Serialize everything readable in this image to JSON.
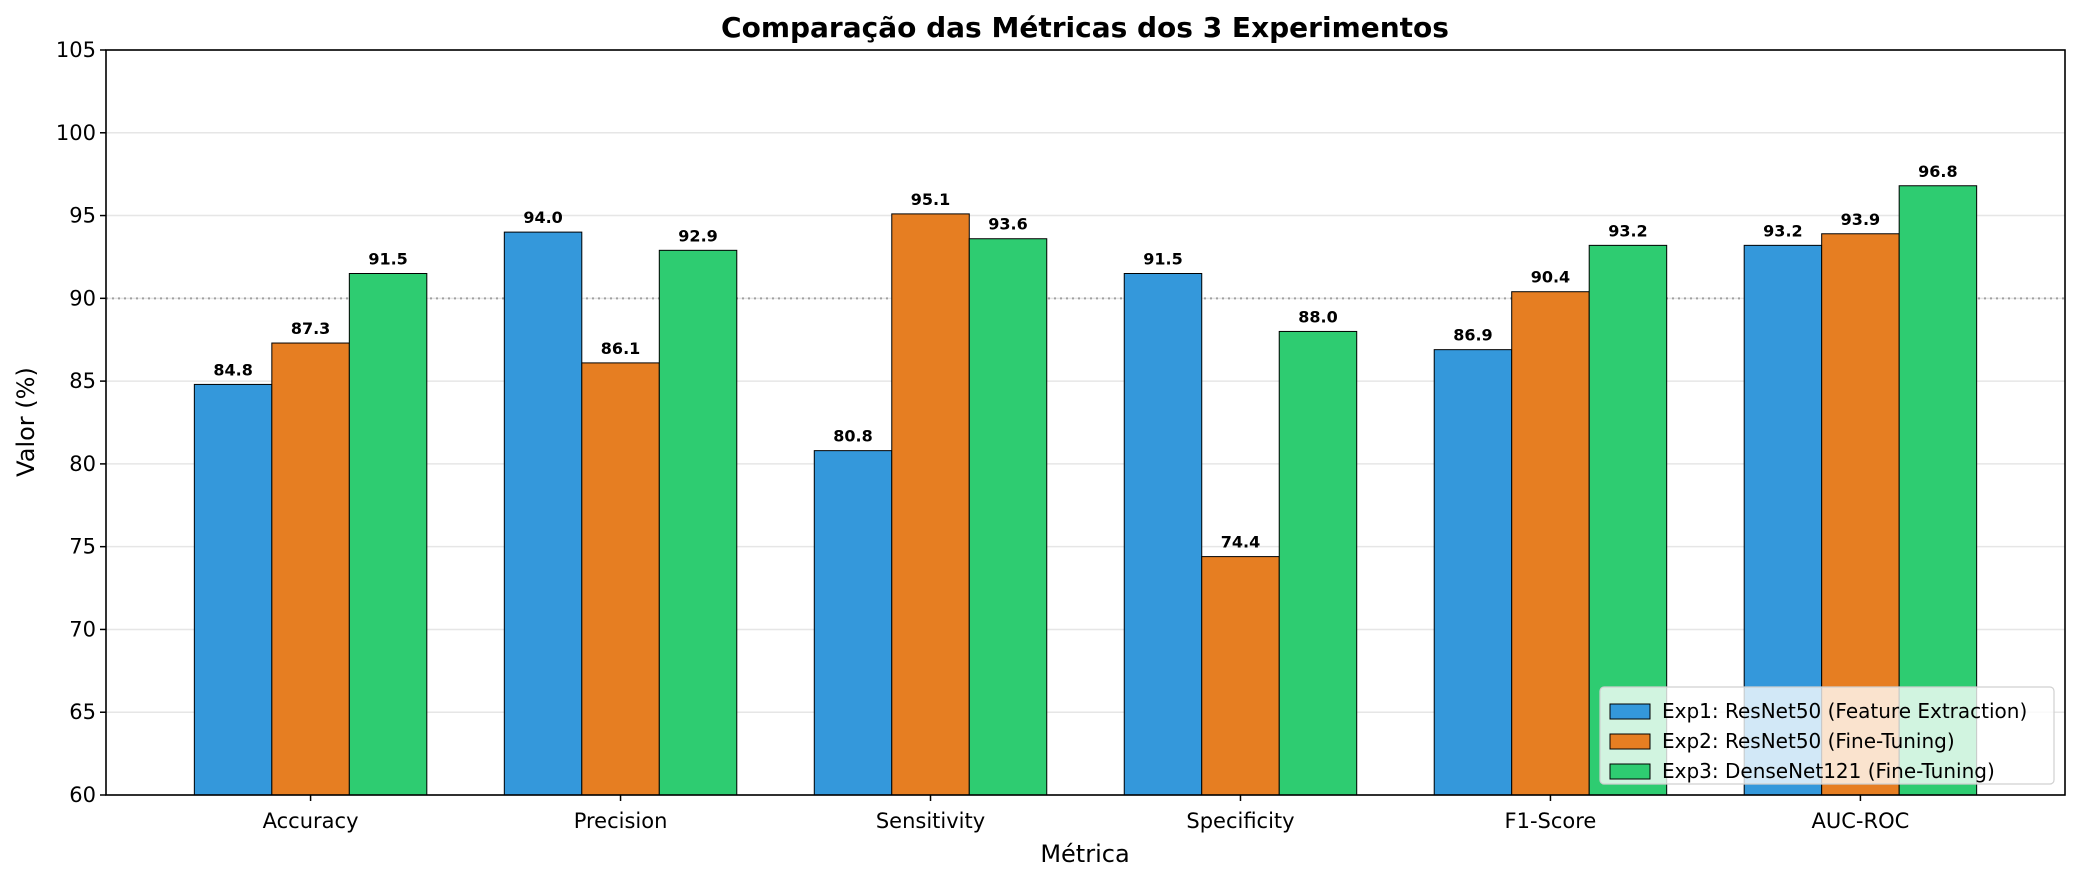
{
  "chart_data": {
    "type": "bar",
    "title": "Comparação das Métricas dos 3 Experimentos",
    "xlabel": "Métrica",
    "ylabel": "Valor (%)",
    "ylim": [
      60,
      105
    ],
    "yticks": [
      "60",
      "65",
      "70",
      "75",
      "80",
      "85",
      "90",
      "95",
      "100",
      "105"
    ],
    "grid": "horizontal",
    "reference_line": 90,
    "legend_position": "lower-right",
    "categories": [
      "Accuracy",
      "Precision",
      "Sensitivity",
      "Specificity",
      "F1-Score",
      "AUC-ROC"
    ],
    "series": [
      {
        "name": "Exp1: ResNet50 (Feature Extraction)",
        "color": "#3498db",
        "values": [
          84.8,
          94.0,
          80.8,
          91.5,
          86.9,
          93.2
        ],
        "labels": [
          "84.8",
          "94.0",
          "80.8",
          "91.5",
          "86.9",
          "93.2"
        ]
      },
      {
        "name": "Exp2: ResNet50 (Fine-Tuning)",
        "color": "#e67e22",
        "values": [
          87.3,
          86.1,
          95.1,
          74.4,
          90.4,
          93.9
        ],
        "labels": [
          "87.3",
          "86.1",
          "95.1",
          "74.4",
          "90.4",
          "93.9"
        ]
      },
      {
        "name": "Exp3: DenseNet121 (Fine-Tuning)",
        "color": "#2ecc71",
        "values": [
          91.5,
          92.9,
          93.6,
          88.0,
          93.2,
          96.8
        ],
        "labels": [
          "91.5",
          "92.9",
          "93.6",
          "88.0",
          "93.2",
          "96.8"
        ]
      }
    ]
  }
}
